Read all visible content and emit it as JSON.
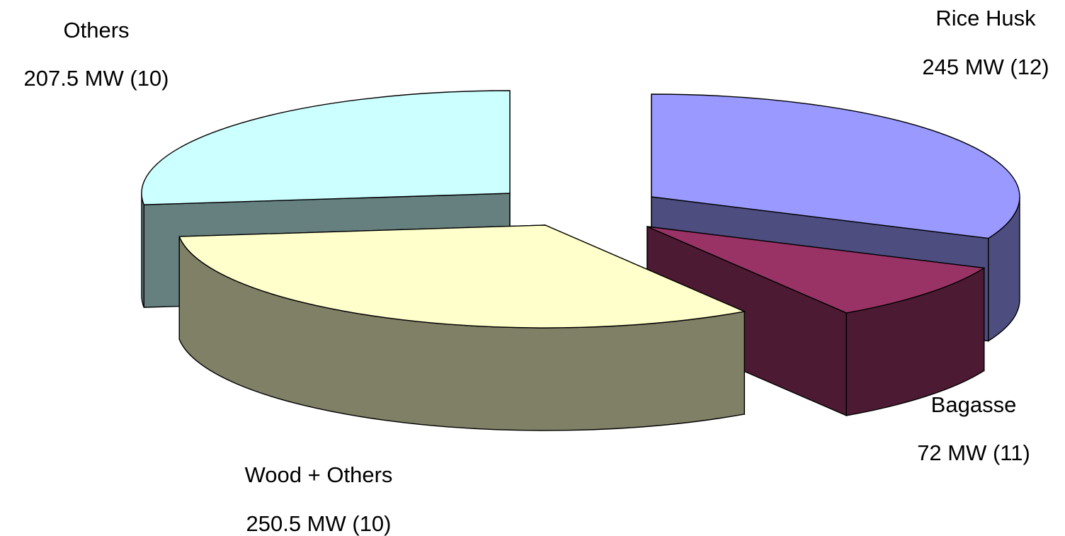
{
  "chart_data": {
    "type": "pie",
    "style": "3d-exploded",
    "title": "",
    "slices": [
      {
        "category": "Rice Husk",
        "value": 245,
        "count": 12,
        "label_line1": "Rice Husk",
        "label_line2": "245 MW (12)",
        "top_color": "#9999ff",
        "side_color": "#4d4d80",
        "dark_side_color": "#4d4d80"
      },
      {
        "category": "Bagasse",
        "value": 72,
        "count": 11,
        "label_line1": "Bagasse",
        "label_line2": "72 MW (11)",
        "top_color": "#993366",
        "side_color": "#4d1a33",
        "dark_side_color": "#4d1a33"
      },
      {
        "category": "Wood + Others",
        "value": 250.5,
        "count": 10,
        "label_line1": "Wood + Others",
        "label_line2": "250.5 MW (10)",
        "top_color": "#ffffcc",
        "side_color": "#808066",
        "dark_side_color": "#808066"
      },
      {
        "category": "Others",
        "value": 207.5,
        "count": 10,
        "label_line1": "Others",
        "label_line2": "207.5 MW (10)",
        "top_color": "#ccffff",
        "side_color": "#668080",
        "dark_side_color": "#668080"
      }
    ],
    "legend": "none"
  }
}
